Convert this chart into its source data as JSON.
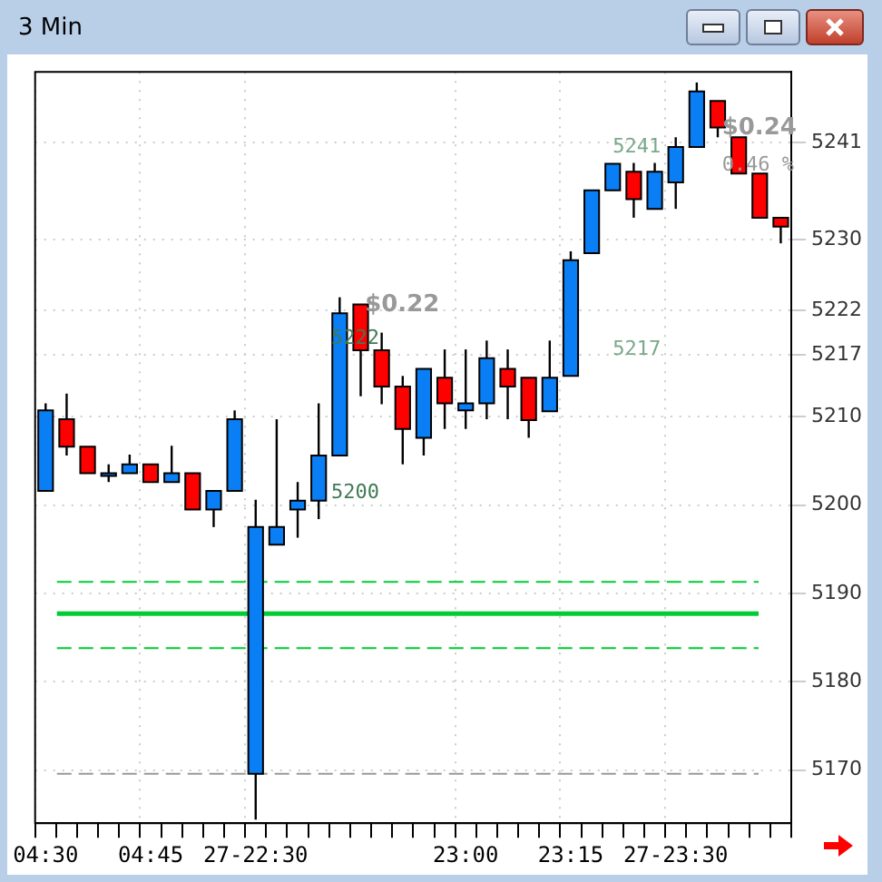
{
  "chart_data": {
    "type": "candlestick",
    "title": "3 Min",
    "categories": [
      "04:30",
      null,
      null,
      null,
      null,
      "04:45",
      null,
      null,
      null,
      null,
      "27-22:30",
      null,
      null,
      null,
      null,
      null,
      null,
      null,
      null,
      null,
      "23:00",
      null,
      null,
      null,
      null,
      "23:15",
      null,
      null,
      null,
      null,
      "27-23:30",
      null,
      null,
      null,
      null,
      null
    ],
    "ohlc": [
      [
        5201.6,
        5211.5,
        5201.6,
        5210.7
      ],
      [
        5209.7,
        5212.6,
        5205.6,
        5206.6
      ],
      [
        5206.6,
        5206.6,
        5203.6,
        5203.6
      ],
      [
        5203.6,
        5204.6,
        5202.6,
        5203.6
      ],
      [
        5203.6,
        5205.7,
        5203.6,
        5204.6
      ],
      [
        5204.6,
        5204.6,
        5202.6,
        5202.6
      ],
      [
        5202.6,
        5206.7,
        5202.6,
        5203.6
      ],
      [
        5203.6,
        5203.6,
        5199.5,
        5199.5
      ],
      [
        5199.5,
        5201.6,
        5197.5,
        5201.6
      ],
      [
        5201.6,
        5210.7,
        5201.6,
        5209.7
      ],
      [
        5169.6,
        5200.6,
        5164.4,
        5197.5
      ],
      [
        5195.5,
        5209.7,
        5195.5,
        5197.5
      ],
      [
        5199.5,
        5202.6,
        5196.3,
        5200.5
      ],
      [
        5200.5,
        5211.5,
        5198.4,
        5205.6
      ],
      [
        5205.6,
        5223.5,
        5205.6,
        5221.7
      ],
      [
        5222.7,
        5222.7,
        5212.3,
        5217.5
      ],
      [
        5217.5,
        5219.5,
        5211.4,
        5213.4
      ],
      [
        5213.4,
        5214.6,
        5204.6,
        5208.6
      ],
      [
        5207.6,
        5215.4,
        5205.6,
        5215.4
      ],
      [
        5214.4,
        5217.6,
        5208.6,
        5211.5
      ],
      [
        5210.7,
        5217.6,
        5208.6,
        5211.5
      ],
      [
        5211.5,
        5218.6,
        5209.7,
        5216.6
      ],
      [
        5215.4,
        5217.6,
        5209.7,
        5213.4
      ],
      [
        5214.4,
        5214.4,
        5207.6,
        5209.6
      ],
      [
        5210.6,
        5218.6,
        5210.6,
        5214.4
      ],
      [
        5214.6,
        5228.7,
        5214.6,
        5227.7
      ],
      [
        5228.5,
        5235.6,
        5228.5,
        5235.6
      ],
      [
        5235.6,
        5238.6,
        5235.6,
        5238.6
      ],
      [
        5237.7,
        5238.7,
        5232.5,
        5234.6
      ],
      [
        5233.5,
        5238.7,
        5233.5,
        5237.7
      ],
      [
        5236.5,
        5241.6,
        5233.5,
        5240.5
      ],
      [
        5240.5,
        5247.8,
        5240.5,
        5246.8
      ],
      [
        5245.7,
        5245.7,
        5241.6,
        5242.7
      ],
      [
        5241.6,
        5241.6,
        5237.5,
        5237.5
      ],
      [
        5237.5,
        5237.5,
        5232.5,
        5232.5
      ],
      [
        5232.5,
        5232.5,
        5229.6,
        5231.5
      ]
    ],
    "colors": [
      "#0a7ff5",
      "#ff0000",
      "#ff0000",
      "#0a7ff5",
      "#0a7ff5",
      "#ff0000",
      "#0a7ff5",
      "#ff0000",
      "#0a7ff5",
      "#0a7ff5",
      "#0a7ff5",
      "#0a7ff5",
      "#0a7ff5",
      "#0a7ff5",
      "#0a7ff5",
      "#ff0000",
      "#ff0000",
      "#ff0000",
      "#0a7ff5",
      "#ff0000",
      "#0a7ff5",
      "#0a7ff5",
      "#ff0000",
      "#ff0000",
      "#0a7ff5",
      "#0a7ff5",
      "#0a7ff5",
      "#0a7ff5",
      "#ff0000",
      "#0a7ff5",
      "#0a7ff5",
      "#0a7ff5",
      "#ff0000",
      "#ff0000",
      "#ff0000",
      "#ff0000"
    ],
    "ylim": [
      5164,
      5249
    ],
    "yticks": [
      5170,
      5180,
      5190,
      5200,
      5210,
      5217,
      5222,
      5230,
      5241
    ],
    "grid": true,
    "ref_lines": [
      {
        "axis": "y",
        "value": 5191.3,
        "color": "#00cc33",
        "line_style": "dashed"
      },
      {
        "axis": "y",
        "value": 5187.7,
        "color": "#00cc33",
        "line_style": "solid"
      },
      {
        "axis": "y",
        "value": 5183.8,
        "color": "#00cc33",
        "line_style": "dashed"
      },
      {
        "axis": "y",
        "value": 5169.6,
        "color": "#999999",
        "line_style": "dashed"
      }
    ],
    "annotations": [
      "$0.22",
      "5222",
      "5200",
      "$0.24",
      "0.46 %",
      "5241",
      "5217"
    ]
  }
}
